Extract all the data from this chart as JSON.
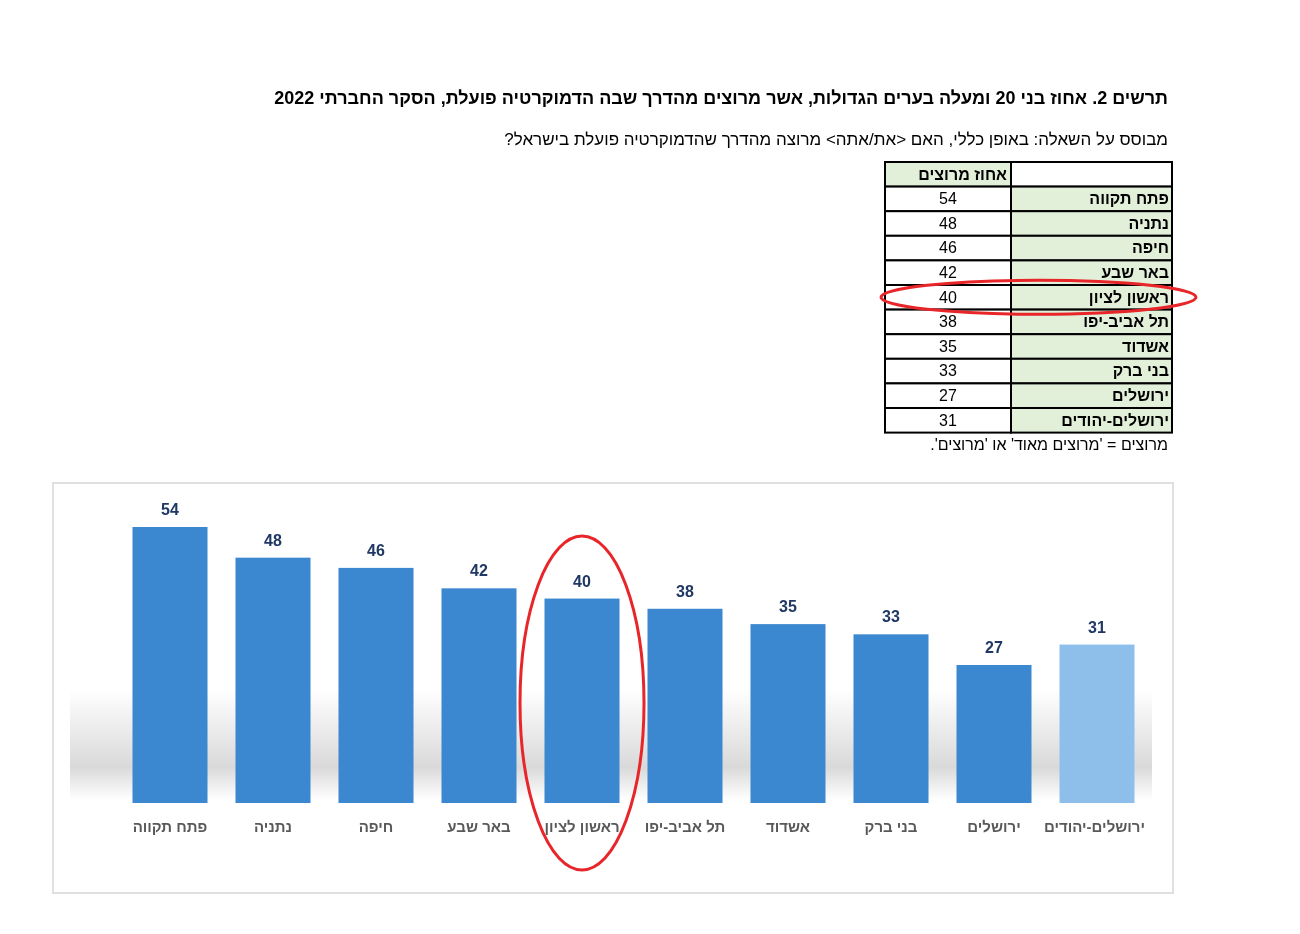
{
  "chart_data": [
    {
      "type": "other",
      "title": "תרשים 2. אחוז בני 20 ומעלה בערים הגדולות, אשר מרוצים מהדרך שבה הדמוקרטיה פועלת, הסקר החברתי 2022",
      "subtitle": "מבוסס על השאלה: באופן כללי, האם <את/אתה> מרוצה מהדרך שהדמוקרטיה  פועלת בישראל?",
      "categories": [
        "פתח תקווה",
        "נתניה",
        "חיפה",
        "באר שבע",
        "ראשון לציון",
        "תל אביב-יפו",
        "אשדוד",
        "בני ברק",
        "ירושלים",
        "ירושלים-יהודים"
      ],
      "values": [
        54,
        48,
        46,
        42,
        40,
        38,
        35,
        33,
        27,
        31
      ],
      "data_labels": true,
      "annotations": [
        "אחוז מרוצים",
        "מרוצים = 'מרוצים מאוד' או 'מרוצים'."
      ]
    },
    {
      "type": "bar",
      "categories": [
        "פתח תקווה",
        "נתניה",
        "חיפה",
        "באר שבע",
        "ראשון לציון",
        "תל אביב-יפו",
        "אשדוד",
        "בני ברק",
        "ירושלים",
        "ירושלים-יהודים"
      ],
      "values": [
        54,
        48,
        46,
        42,
        40,
        38,
        35,
        33,
        27,
        31
      ],
      "colors": [
        "#3b87d0",
        "#3b87d0",
        "#3b87d0",
        "#3b87d0",
        "#3b87d0",
        "#3b87d0",
        "#3b87d0",
        "#3b87d0",
        "#3b87d0",
        "#8ebfea"
      ],
      "data_labels": true
    }
  ]
}
